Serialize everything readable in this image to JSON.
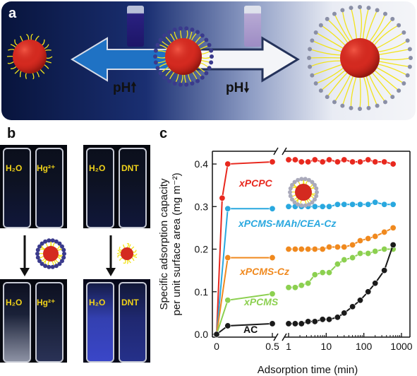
{
  "panel_a": {
    "label": "a",
    "ph_up": "pH",
    "ph_down": "pH",
    "arrow_up_symbol": "🠕",
    "arrow_down_symbol": "🠗",
    "colors": {
      "sphere": "#d42a20",
      "arm": "#f2e31a",
      "dot": "#3a3a8c"
    }
  },
  "panel_b": {
    "label": "b",
    "groups": [
      {
        "top_left": "H₂O",
        "top_right": "Hg²⁺",
        "bottom_left": "H₂O",
        "bottom_right": "Hg²⁺"
      },
      {
        "top_left": "H₂O",
        "top_right": "DNT",
        "bottom_left": "H₂O",
        "bottom_right": "DNT"
      }
    ]
  },
  "panel_c": {
    "label": "c",
    "chart_data": {
      "type": "line",
      "ylabel": "Specific adsorption capacity per unit surface area (mg m⁻²)",
      "xlabel": "Adsorption time (min)",
      "ylim": [
        0,
        0.42
      ],
      "yticks": [
        "0.0",
        "0.1",
        "0.2",
        "0.3",
        "0.4"
      ],
      "xticks_linear": [
        "0",
        "0.5"
      ],
      "xticks_log": [
        "1",
        "10",
        "100",
        "1000"
      ],
      "axis_break": true,
      "series": [
        {
          "name": "xPCPC",
          "color": "#e8281e",
          "x": [
            0,
            0.05,
            0.1,
            0.5,
            1,
            1.5,
            2.2,
            3.3,
            5,
            8,
            12,
            20,
            30,
            50,
            80,
            130,
            200,
            350,
            600
          ],
          "y": [
            0,
            0.32,
            0.4,
            0.405,
            0.41,
            0.41,
            0.405,
            0.405,
            0.41,
            0.405,
            0.41,
            0.405,
            0.41,
            0.405,
            0.405,
            0.41,
            0.405,
            0.405,
            0.4
          ]
        },
        {
          "name": "xPCMS-MAh/CEA-Cz",
          "color": "#29a8df",
          "x": [
            0,
            0.1,
            0.5,
            1,
            1.5,
            2.2,
            3.3,
            5,
            8,
            12,
            20,
            30,
            50,
            80,
            130,
            200,
            350,
            600
          ],
          "y": [
            0,
            0.295,
            0.295,
            0.3,
            0.3,
            0.3,
            0.3,
            0.3,
            0.3,
            0.3,
            0.305,
            0.305,
            0.305,
            0.305,
            0.305,
            0.31,
            0.305,
            0.305
          ]
        },
        {
          "name": "xPCMS-Cz",
          "color": "#f0891e",
          "x": [
            0,
            0.1,
            0.5,
            1,
            1.5,
            2.2,
            3.3,
            5,
            8,
            12,
            20,
            30,
            50,
            80,
            130,
            200,
            350,
            600
          ],
          "y": [
            0,
            0.18,
            0.18,
            0.2,
            0.2,
            0.2,
            0.2,
            0.2,
            0.2,
            0.205,
            0.205,
            0.205,
            0.21,
            0.22,
            0.225,
            0.23,
            0.24,
            0.25
          ]
        },
        {
          "name": "xPCMS",
          "color": "#8cd050",
          "x": [
            0,
            0.1,
            0.5,
            1,
            1.5,
            2.2,
            3.3,
            5,
            8,
            12,
            20,
            30,
            50,
            80,
            130,
            200,
            350,
            600
          ],
          "y": [
            0,
            0.08,
            0.095,
            0.11,
            0.11,
            0.115,
            0.12,
            0.14,
            0.145,
            0.145,
            0.165,
            0.175,
            0.18,
            0.19,
            0.19,
            0.195,
            0.2,
            0.2
          ]
        },
        {
          "name": "AC",
          "color": "#1a1a1a",
          "x": [
            0,
            0.1,
            0.5,
            1,
            1.5,
            2.2,
            3.3,
            5,
            8,
            12,
            20,
            30,
            50,
            80,
            130,
            200,
            350,
            600
          ],
          "y": [
            0,
            0.02,
            0.025,
            0.025,
            0.025,
            0.025,
            0.03,
            0.03,
            0.035,
            0.035,
            0.04,
            0.05,
            0.065,
            0.08,
            0.1,
            0.12,
            0.15,
            0.21
          ]
        }
      ]
    }
  }
}
